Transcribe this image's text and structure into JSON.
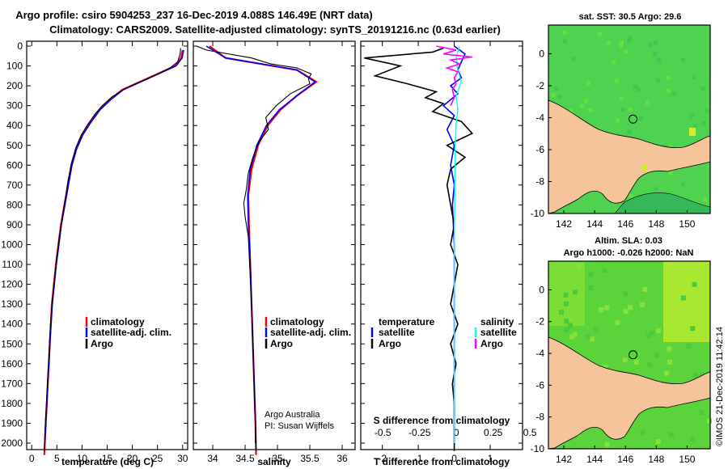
{
  "title_line1": "Argo profile: csiro 5904253_237 16-Dec-2019 4.088S 146.49E (NRT data)",
  "title_line2": "Climatology: CARS2009. Satellite-adjusted climatology: synTS_20191216.nc (0.63d earlier)",
  "colors": {
    "climatology": "#ff0000",
    "satellite": "#0000ff",
    "argo": "#000000",
    "sat_salinity": "#00ffff",
    "argo_salinity": "#ff00ff",
    "land": "#f5c49a",
    "ocean": "#4fd24f",
    "ocean_bright": "#8ae832"
  },
  "legend": {
    "climatology": "climatology",
    "satellite_adj": "satellite-adj. clim.",
    "argo": "Argo"
  },
  "diff_legend": {
    "temperature": "temperature",
    "salinity": "salinity",
    "satellite": "satellite",
    "argo": "Argo"
  },
  "credits": {
    "line1": "Argo Australia",
    "line2": "PI: Susan Wijffels"
  },
  "imos_stamp": "©IMOS 21-Dec-2019 11:42:14",
  "maps": {
    "top_title": "sat. SST: 30.5 Argo: 29.6",
    "bottom_title1": "Altim. SLA: 0.03",
    "bottom_title2": "Argo h1000: -0.026 h2000: NaN",
    "lon_ticks": [
      "142",
      "144",
      "146",
      "148",
      "150"
    ],
    "lat_ticks": [
      "0",
      "-2",
      "-4",
      "-6",
      "-8",
      "-10"
    ],
    "float_marker": {
      "lon": 146.49,
      "lat": -4.088
    }
  },
  "chart_data": [
    {
      "type": "line",
      "name": "temperature-profile",
      "xlabel": "temperature (deg C)",
      "ylabel": "pressure (dbar)",
      "xlim": [
        -1,
        31
      ],
      "ylim": [
        2060,
        0
      ],
      "xticks": [
        "0",
        "5",
        "10",
        "15",
        "20",
        "25",
        "30"
      ],
      "yticks": [
        "0",
        "100",
        "200",
        "300",
        "400",
        "500",
        "600",
        "700",
        "800",
        "900",
        "1000",
        "1100",
        "1200",
        "1300",
        "1400",
        "1500",
        "1600",
        "1700",
        "1800",
        "1900",
        "2000"
      ],
      "series": [
        {
          "name": "climatology",
          "points": [
            [
              30,
              20
            ],
            [
              29.7,
              60
            ],
            [
              28.5,
              100
            ],
            [
              25,
              140
            ],
            [
              21.5,
              180
            ],
            [
              18,
              220
            ],
            [
              15.5,
              270
            ],
            [
              13.5,
              320
            ],
            [
              11.5,
              390
            ],
            [
              10,
              450
            ],
            [
              8.8,
              520
            ],
            [
              7.9,
              600
            ],
            [
              7.2,
              700
            ],
            [
              6.5,
              800
            ],
            [
              5.8,
              900
            ],
            [
              5.3,
              1000
            ],
            [
              4.8,
              1100
            ],
            [
              4.4,
              1200
            ],
            [
              4,
              1300
            ],
            [
              3.8,
              1400
            ],
            [
              3.6,
              1500
            ],
            [
              3.4,
              1600
            ],
            [
              3.2,
              1700
            ],
            [
              3,
              1800
            ],
            [
              2.8,
              1900
            ],
            [
              2.6,
              2000
            ],
            [
              2.5,
              2060
            ]
          ]
        },
        {
          "name": "satellite-adj. clim.",
          "points": [
            [
              30.2,
              20
            ],
            [
              29.9,
              60
            ],
            [
              28.7,
              100
            ],
            [
              25.2,
              140
            ],
            [
              21.7,
              180
            ],
            [
              18.2,
              220
            ],
            [
              15.7,
              270
            ],
            [
              13.6,
              320
            ],
            [
              11.6,
              390
            ],
            [
              10.1,
              450
            ],
            [
              8.9,
              520
            ],
            [
              8,
              600
            ],
            [
              7.3,
              700
            ],
            [
              6.6,
              800
            ],
            [
              5.9,
              900
            ],
            [
              5.4,
              1000
            ],
            [
              4.9,
              1100
            ],
            [
              4.5,
              1200
            ],
            [
              4.1,
              1300
            ],
            [
              3.85,
              1400
            ],
            [
              3.6,
              1500
            ],
            [
              3.4,
              1600
            ],
            [
              3.2,
              1700
            ],
            [
              3,
              1800
            ],
            [
              2.8,
              1900
            ],
            [
              2.6,
              2000
            ]
          ]
        },
        {
          "name": "Argo",
          "points": [
            [
              29.6,
              10
            ],
            [
              29.5,
              40
            ],
            [
              29,
              80
            ],
            [
              27.5,
              110
            ],
            [
              25.2,
              140
            ],
            [
              22,
              175
            ],
            [
              18.5,
              215
            ],
            [
              16,
              255
            ],
            [
              14,
              300
            ],
            [
              12.5,
              345
            ],
            [
              11,
              400
            ],
            [
              9.8,
              450
            ],
            [
              8.8,
              510
            ],
            [
              7.9,
              590
            ],
            [
              7.2,
              680
            ],
            [
              6.6,
              780
            ],
            [
              6,
              880
            ],
            [
              5.4,
              980
            ],
            [
              4.9,
              1080
            ],
            [
              4.5,
              1180
            ],
            [
              4.1,
              1280
            ],
            [
              3.8,
              1380
            ],
            [
              3.55,
              1480
            ],
            [
              3.35,
              1580
            ],
            [
              3.15,
              1680
            ],
            [
              2.95,
              1780
            ],
            [
              2.75,
              1880
            ],
            [
              2.6,
              1960
            ],
            [
              2.5,
              2040
            ]
          ]
        }
      ]
    },
    {
      "type": "line",
      "name": "salinity-profile",
      "xlabel": "salinity",
      "xlim": [
        33.7,
        36.2
      ],
      "ylim": [
        2060,
        0
      ],
      "xticks": [
        "34",
        "34.5",
        "35",
        "35.5",
        "36"
      ],
      "series": [
        {
          "name": "climatology",
          "points": [
            [
              33.95,
              0
            ],
            [
              34.2,
              60
            ],
            [
              35.3,
              120
            ],
            [
              35.6,
              180
            ],
            [
              35.3,
              250
            ],
            [
              35.05,
              320
            ],
            [
              34.85,
              400
            ],
            [
              34.7,
              500
            ],
            [
              34.6,
              620
            ],
            [
              34.55,
              750
            ],
            [
              34.56,
              900
            ],
            [
              34.58,
              1100
            ],
            [
              34.6,
              1300
            ],
            [
              34.62,
              1500
            ],
            [
              34.64,
              1700
            ],
            [
              34.66,
              1900
            ],
            [
              34.67,
              2060
            ]
          ]
        },
        {
          "name": "satellite-adj. clim.",
          "points": [
            [
              33.9,
              0
            ],
            [
              34.2,
              60
            ],
            [
              35.3,
              120
            ],
            [
              35.58,
              180
            ],
            [
              35.3,
              250
            ],
            [
              35.03,
              320
            ],
            [
              34.83,
              400
            ],
            [
              34.68,
              500
            ],
            [
              34.58,
              620
            ],
            [
              34.54,
              750
            ],
            [
              34.55,
              900
            ],
            [
              34.58,
              1100
            ],
            [
              34.6,
              1300
            ],
            [
              34.62,
              1500
            ],
            [
              34.64,
              1700
            ],
            [
              34.66,
              1900
            ],
            [
              34.66,
              2000
            ]
          ]
        },
        {
          "name": "Argo",
          "points": [
            [
              33.75,
              0
            ],
            [
              33.9,
              20
            ],
            [
              34.6,
              60
            ],
            [
              34.9,
              90
            ],
            [
              35.3,
              110
            ],
            [
              35.52,
              140
            ],
            [
              35.48,
              165
            ],
            [
              35.5,
              190
            ],
            [
              35.2,
              240
            ],
            [
              34.98,
              300
            ],
            [
              34.82,
              360
            ],
            [
              34.86,
              420
            ],
            [
              34.72,
              480
            ],
            [
              34.62,
              560
            ],
            [
              34.55,
              640
            ],
            [
              34.52,
              720
            ],
            [
              34.48,
              790
            ],
            [
              34.5,
              860
            ],
            [
              34.55,
              960
            ],
            [
              34.57,
              1100
            ],
            [
              34.6,
              1300
            ],
            [
              34.62,
              1500
            ],
            [
              34.64,
              1700
            ],
            [
              34.66,
              1900
            ],
            [
              34.67,
              2040
            ]
          ]
        }
      ]
    },
    {
      "type": "line",
      "name": "difference-from-climatology",
      "xlabel": "T difference from climatology",
      "xlabel_top": "S difference from climatology",
      "xlim": [
        -2.6,
        1.9
      ],
      "ylim": [
        2060,
        0
      ],
      "xticks": [
        "-2",
        "-1",
        "0",
        "1"
      ],
      "xticks_top": [
        "-0.5",
        "-0.25",
        "0",
        "0.25",
        "0.5"
      ],
      "series": [
        {
          "name": "temperature satellite",
          "points": [
            [
              0,
              0
            ],
            [
              0.3,
              40
            ],
            [
              0.2,
              80
            ],
            [
              0.1,
              120
            ],
            [
              0.2,
              160
            ],
            [
              -0.1,
              200
            ],
            [
              0.1,
              240
            ],
            [
              -0.3,
              300
            ],
            [
              0,
              350
            ],
            [
              -0.2,
              420
            ],
            [
              0,
              500
            ],
            [
              -0.1,
              600
            ],
            [
              0,
              700
            ],
            [
              -0.05,
              800
            ],
            [
              0,
              1000
            ],
            [
              0,
              1500
            ],
            [
              0,
              2000
            ]
          ]
        },
        {
          "name": "temperature Argo",
          "points": [
            [
              -0.3,
              10
            ],
            [
              -0.6,
              30
            ],
            [
              -2.5,
              60
            ],
            [
              -1.5,
              100
            ],
            [
              -2.2,
              150
            ],
            [
              -1.3,
              190
            ],
            [
              -0.5,
              230
            ],
            [
              -0.8,
              260
            ],
            [
              -0.3,
              290
            ],
            [
              -0.6,
              330
            ],
            [
              0.2,
              380
            ],
            [
              0.5,
              440
            ],
            [
              -0.2,
              500
            ],
            [
              0.3,
              560
            ],
            [
              -0.1,
              620
            ],
            [
              -0.2,
              700
            ],
            [
              -0.1,
              800
            ],
            [
              0,
              900
            ],
            [
              -0.1,
              1000
            ],
            [
              0.1,
              1100
            ],
            [
              0,
              1200
            ],
            [
              -0.1,
              1300
            ],
            [
              0.1,
              1400
            ],
            [
              -0.1,
              1500
            ],
            [
              0.05,
              1600
            ],
            [
              -0.05,
              1700
            ],
            [
              0,
              1800
            ],
            [
              0,
              1900
            ],
            [
              0,
              2040
            ]
          ]
        },
        {
          "name": "salinity satellite",
          "points": [
            [
              0.15,
              0
            ],
            [
              0.05,
              60
            ],
            [
              0.1,
              120
            ],
            [
              0.2,
              180
            ],
            [
              0.05,
              250
            ],
            [
              0.1,
              320
            ],
            [
              0.05,
              400
            ],
            [
              0.03,
              500
            ],
            [
              0.02,
              600
            ],
            [
              0.01,
              800
            ],
            [
              0,
              1000
            ],
            [
              0,
              1500
            ],
            [
              0,
              2000
            ]
          ]
        },
        {
          "name": "salinity Argo",
          "points": [
            [
              -0.5,
              0
            ],
            [
              0.05,
              20
            ],
            [
              -0.3,
              40
            ],
            [
              0.5,
              55
            ],
            [
              -0.1,
              70
            ],
            [
              0.15,
              90
            ],
            [
              -0.2,
              110
            ],
            [
              0.1,
              130
            ],
            [
              0,
              160
            ],
            [
              0.05,
              190
            ],
            [
              -0.05,
              220
            ],
            [
              0,
              260
            ],
            [
              -0.1,
              300
            ]
          ]
        }
      ]
    }
  ]
}
